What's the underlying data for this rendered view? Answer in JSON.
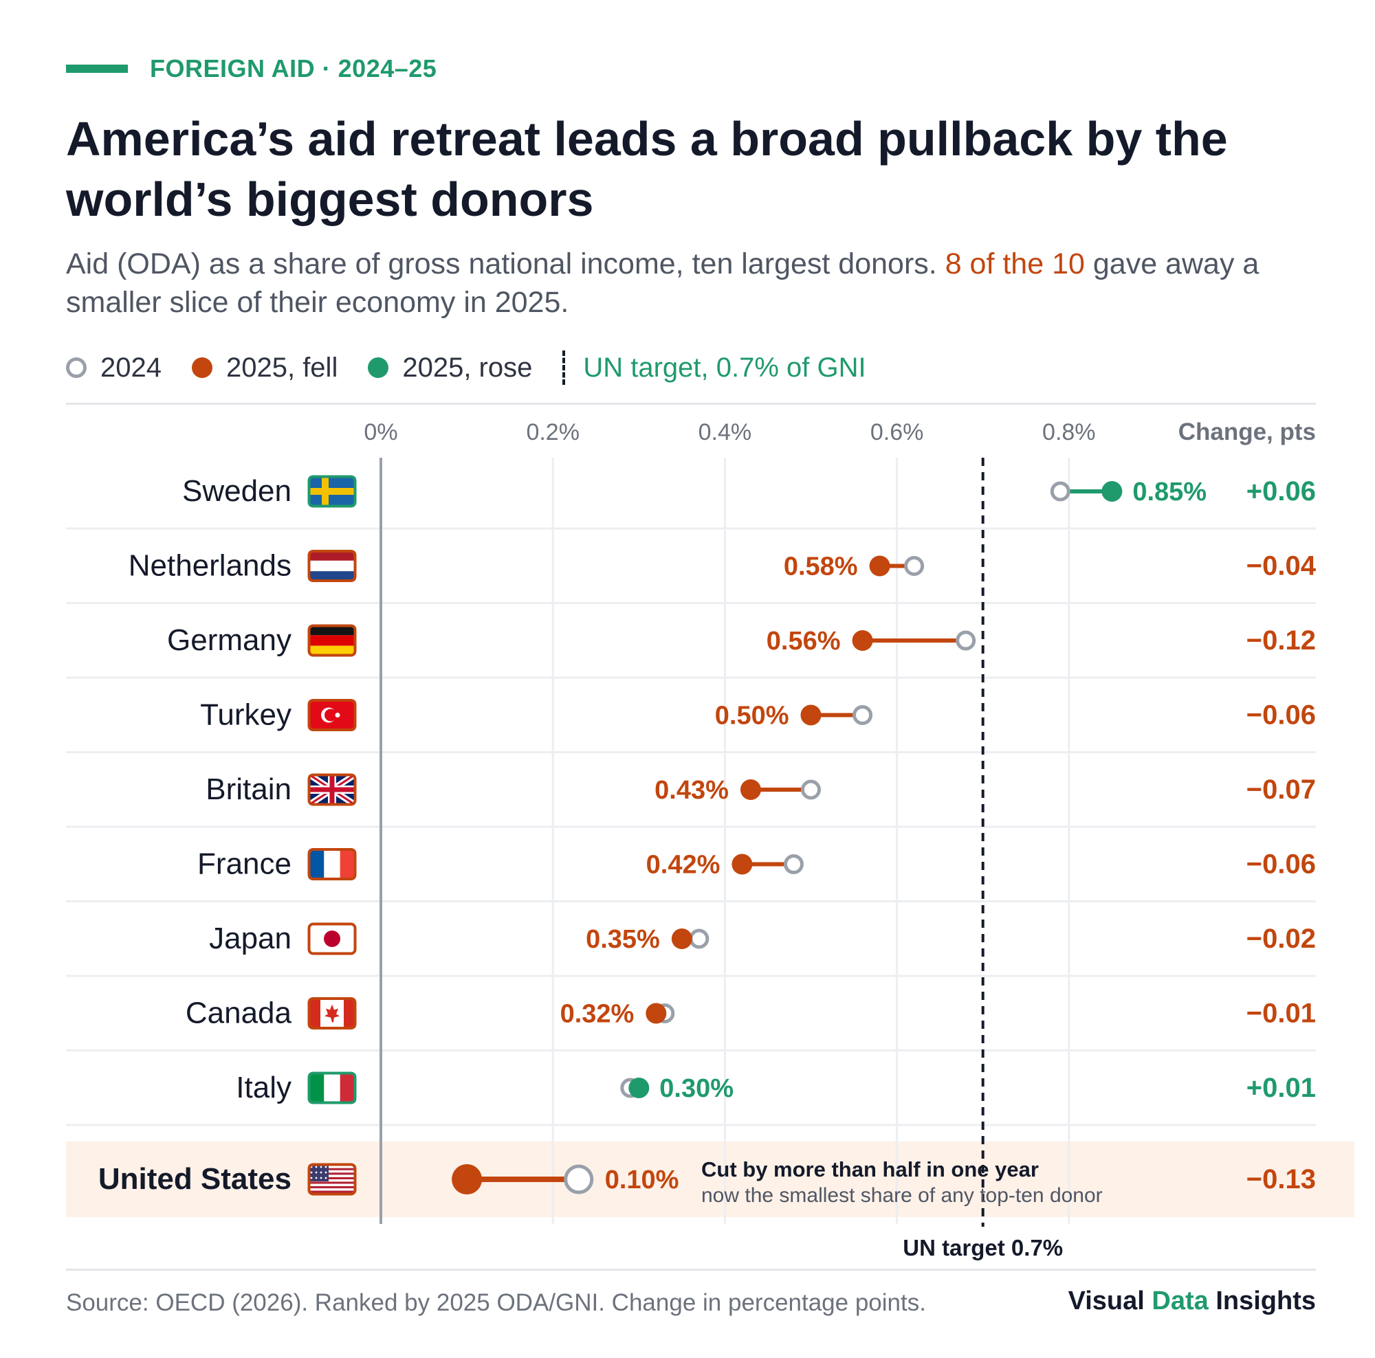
{
  "header": {
    "kicker": "FOREIGN AID · 2024–25",
    "title": "America’s aid retreat leads a broad pullback by the world’s biggest donors",
    "subtitle_before": "Aid (ODA) as a share of gross national income, ten largest donors. ",
    "subtitle_highlight": "8 of the 10",
    "subtitle_after": " gave away a smaller slice of their economy in 2025."
  },
  "legend": {
    "item_2024": "2024",
    "item_fell": "2025, fell",
    "item_rose": "2025, rose",
    "item_target": "UN target, 0.7% of GNI"
  },
  "colors": {
    "fell": "#c2460e",
    "rose": "#1f9a6c",
    "open": "#9aa0aa",
    "text": "#141a2a",
    "highlight_band": "#fdf1e8"
  },
  "chart_data": {
    "type": "dumbbell",
    "x_unit": "% of GNI",
    "xlim": [
      0,
      0.9
    ],
    "x_ticks": [
      0,
      0.2,
      0.4,
      0.6,
      0.8
    ],
    "x_tick_labels": [
      "0%",
      "0.2%",
      "0.4%",
      "0.6%",
      "0.8%"
    ],
    "change_header": "Change, pts",
    "target": {
      "value": 0.7,
      "label": "UN target 0.7%"
    },
    "series": [
      {
        "name": "2024"
      },
      {
        "name": "2025"
      }
    ],
    "rows": [
      {
        "country": "Sweden",
        "flag": "sweden-flag",
        "v2024": 0.79,
        "v2025": 0.85,
        "label": "0.85%",
        "change": "+0.06",
        "direction": "rose"
      },
      {
        "country": "Netherlands",
        "flag": "netherlands-flag",
        "v2024": 0.62,
        "v2025": 0.58,
        "label": "0.58%",
        "change": "−0.04",
        "direction": "fell"
      },
      {
        "country": "Germany",
        "flag": "germany-flag",
        "v2024": 0.68,
        "v2025": 0.56,
        "label": "0.56%",
        "change": "−0.12",
        "direction": "fell"
      },
      {
        "country": "Turkey",
        "flag": "turkey-flag",
        "v2024": 0.56,
        "v2025": 0.5,
        "label": "0.50%",
        "change": "−0.06",
        "direction": "fell"
      },
      {
        "country": "Britain",
        "flag": "uk-flag",
        "v2024": 0.5,
        "v2025": 0.43,
        "label": "0.43%",
        "change": "−0.07",
        "direction": "fell"
      },
      {
        "country": "France",
        "flag": "france-flag",
        "v2024": 0.48,
        "v2025": 0.42,
        "label": "0.42%",
        "change": "−0.06",
        "direction": "fell"
      },
      {
        "country": "Japan",
        "flag": "japan-flag",
        "v2024": 0.37,
        "v2025": 0.35,
        "label": "0.35%",
        "change": "−0.02",
        "direction": "fell"
      },
      {
        "country": "Canada",
        "flag": "canada-flag",
        "v2024": 0.33,
        "v2025": 0.32,
        "label": "0.32%",
        "change": "−0.01",
        "direction": "fell"
      },
      {
        "country": "Italy",
        "flag": "italy-flag",
        "v2024": 0.29,
        "v2025": 0.3,
        "label": "0.30%",
        "change": "+0.01",
        "direction": "rose"
      },
      {
        "country": "United States",
        "flag": "us-flag",
        "v2024": 0.23,
        "v2025": 0.1,
        "label": "0.10%",
        "change": "−0.13",
        "direction": "fell",
        "highlight": true
      }
    ],
    "annotation": {
      "title": "Cut by more than half in one year",
      "text": "now the smallest share of any top-ten donor"
    }
  },
  "footer": {
    "source": "Source: OECD (2026). Ranked by 2025 ODA/GNI. Change in percentage points.",
    "brand_1": "Visual ",
    "brand_2": "Data",
    "brand_3": " Insights"
  }
}
